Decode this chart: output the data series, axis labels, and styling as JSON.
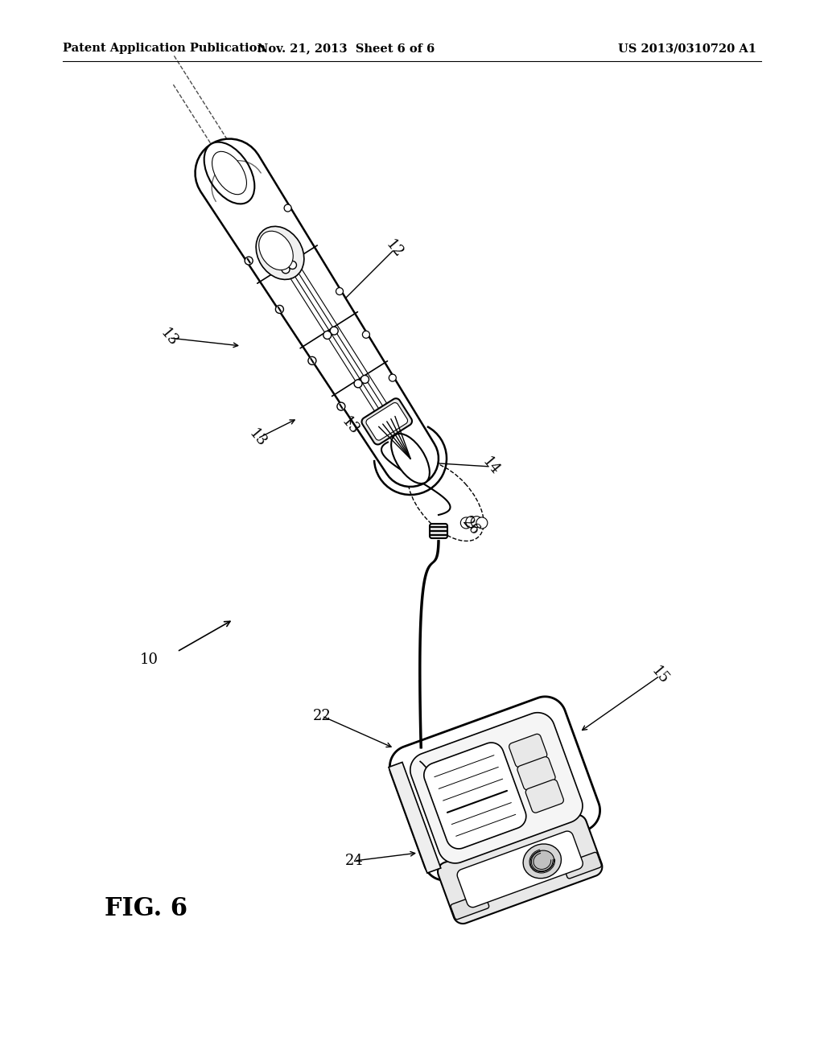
{
  "background_color": "#ffffff",
  "header_left": "Patent Application Publication",
  "header_center": "Nov. 21, 2013  Sheet 6 of 6",
  "header_right": "US 2013/0310720 A1",
  "fig_label": "FIG. 6",
  "label_fontsize": 13,
  "header_fontsize": 10.5,
  "fig_label_fontsize": 22
}
